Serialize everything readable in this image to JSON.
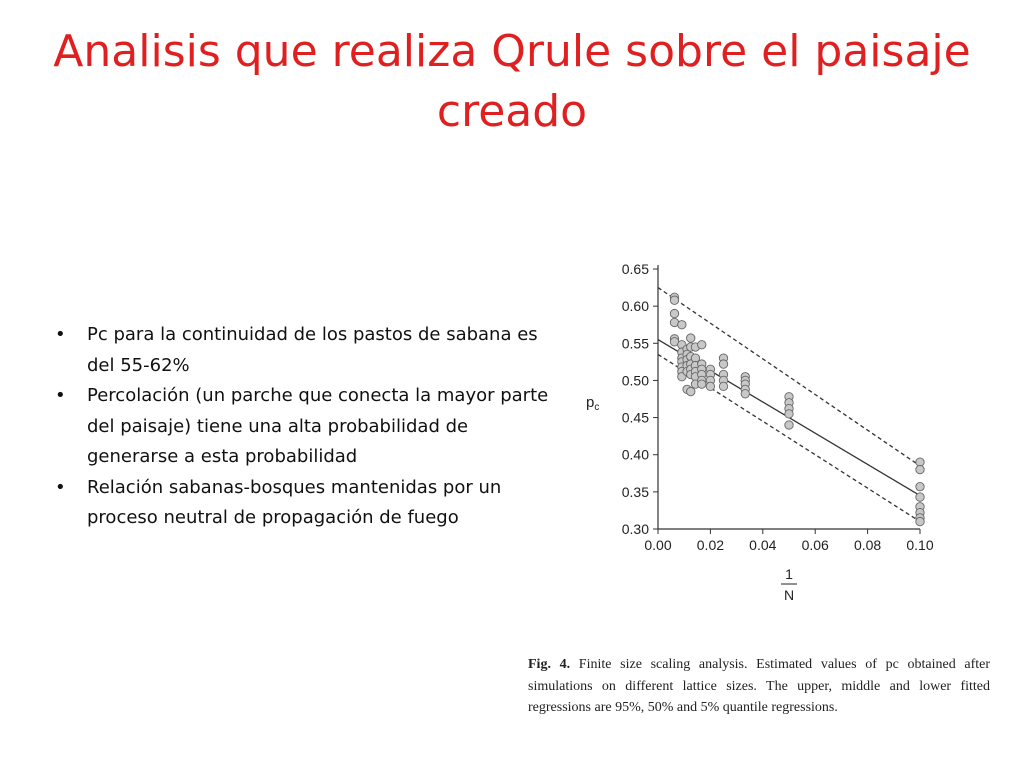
{
  "slide": {
    "title": "Analisis que realiza Qrule sobre el paisaje creado",
    "bullets": [
      "Pc para la continuidad de los pastos de sabana es del 55-62%",
      "Percolación  (un parche que conecta la mayor parte del paisaje) tiene una alta probabilidad de generarse a esta probabilidad",
      "Relación sabanas-bosques mantenidas por un proceso neutral de propagación de fuego"
    ],
    "bullet_glyph": "•"
  },
  "caption": {
    "label": "Fig. 4.",
    "text": "Finite size scaling analysis. Estimated values of pc obtained after simulations on different lattice sizes. The upper, middle and lower fitted regressions are 95%, 50% and 5% quantile regressions."
  },
  "chart_data": {
    "type": "scatter",
    "title": "",
    "ylabel": "pc",
    "xlabel_numerator": "1",
    "xlabel_denominator": "N",
    "xlim": [
      0.0,
      0.1
    ],
    "ylim": [
      0.3,
      0.65
    ],
    "x_ticks": [
      "0.00",
      "0.02",
      "0.04",
      "0.06",
      "0.08",
      "0.10"
    ],
    "y_ticks": [
      "0.30",
      "0.35",
      "0.40",
      "0.45",
      "0.50",
      "0.55",
      "0.60",
      "0.65"
    ],
    "grid": false,
    "marker_color": "#c8c8c8",
    "points": [
      {
        "x": 0.0063,
        "y": 0.612
      },
      {
        "x": 0.0063,
        "y": 0.608
      },
      {
        "x": 0.0063,
        "y": 0.59
      },
      {
        "x": 0.0063,
        "y": 0.578
      },
      {
        "x": 0.0063,
        "y": 0.556
      },
      {
        "x": 0.0063,
        "y": 0.552
      },
      {
        "x": 0.0091,
        "y": 0.575
      },
      {
        "x": 0.0091,
        "y": 0.548
      },
      {
        "x": 0.0091,
        "y": 0.538
      },
      {
        "x": 0.0091,
        "y": 0.53
      },
      {
        "x": 0.0091,
        "y": 0.525
      },
      {
        "x": 0.0091,
        "y": 0.518
      },
      {
        "x": 0.0091,
        "y": 0.512
      },
      {
        "x": 0.0091,
        "y": 0.505
      },
      {
        "x": 0.0111,
        "y": 0.542
      },
      {
        "x": 0.0111,
        "y": 0.535
      },
      {
        "x": 0.0111,
        "y": 0.528
      },
      {
        "x": 0.0111,
        "y": 0.52
      },
      {
        "x": 0.0111,
        "y": 0.512
      },
      {
        "x": 0.0111,
        "y": 0.488
      },
      {
        "x": 0.0125,
        "y": 0.557
      },
      {
        "x": 0.0125,
        "y": 0.545
      },
      {
        "x": 0.0125,
        "y": 0.532
      },
      {
        "x": 0.0125,
        "y": 0.522
      },
      {
        "x": 0.0125,
        "y": 0.515
      },
      {
        "x": 0.0125,
        "y": 0.508
      },
      {
        "x": 0.0125,
        "y": 0.485
      },
      {
        "x": 0.0143,
        "y": 0.545
      },
      {
        "x": 0.0143,
        "y": 0.53
      },
      {
        "x": 0.0143,
        "y": 0.52
      },
      {
        "x": 0.0143,
        "y": 0.512
      },
      {
        "x": 0.0143,
        "y": 0.505
      },
      {
        "x": 0.0143,
        "y": 0.495
      },
      {
        "x": 0.0167,
        "y": 0.548
      },
      {
        "x": 0.0167,
        "y": 0.522
      },
      {
        "x": 0.0167,
        "y": 0.515
      },
      {
        "x": 0.0167,
        "y": 0.508
      },
      {
        "x": 0.0167,
        "y": 0.5
      },
      {
        "x": 0.0167,
        "y": 0.495
      },
      {
        "x": 0.02,
        "y": 0.515
      },
      {
        "x": 0.02,
        "y": 0.508
      },
      {
        "x": 0.02,
        "y": 0.5
      },
      {
        "x": 0.02,
        "y": 0.492
      },
      {
        "x": 0.025,
        "y": 0.53
      },
      {
        "x": 0.025,
        "y": 0.522
      },
      {
        "x": 0.025,
        "y": 0.508
      },
      {
        "x": 0.025,
        "y": 0.5
      },
      {
        "x": 0.025,
        "y": 0.492
      },
      {
        "x": 0.0333,
        "y": 0.505
      },
      {
        "x": 0.0333,
        "y": 0.5
      },
      {
        "x": 0.0333,
        "y": 0.495
      },
      {
        "x": 0.0333,
        "y": 0.488
      },
      {
        "x": 0.0333,
        "y": 0.482
      },
      {
        "x": 0.05,
        "y": 0.478
      },
      {
        "x": 0.05,
        "y": 0.47
      },
      {
        "x": 0.05,
        "y": 0.462
      },
      {
        "x": 0.05,
        "y": 0.455
      },
      {
        "x": 0.05,
        "y": 0.44
      },
      {
        "x": 0.1,
        "y": 0.39
      },
      {
        "x": 0.1,
        "y": 0.38
      },
      {
        "x": 0.1,
        "y": 0.357
      },
      {
        "x": 0.1,
        "y": 0.343
      },
      {
        "x": 0.1,
        "y": 0.33
      },
      {
        "x": 0.1,
        "y": 0.322
      },
      {
        "x": 0.1,
        "y": 0.315
      },
      {
        "x": 0.1,
        "y": 0.31
      }
    ],
    "lines": [
      {
        "name": "95%",
        "style": "dashed",
        "points": [
          {
            "x": 0.0,
            "y": 0.625
          },
          {
            "x": 0.1,
            "y": 0.385
          }
        ]
      },
      {
        "name": "50%",
        "style": "solid",
        "points": [
          {
            "x": 0.0,
            "y": 0.555
          },
          {
            "x": 0.1,
            "y": 0.345
          }
        ]
      },
      {
        "name": "5%",
        "style": "dashed",
        "points": [
          {
            "x": 0.0,
            "y": 0.535
          },
          {
            "x": 0.1,
            "y": 0.31
          }
        ]
      }
    ]
  }
}
